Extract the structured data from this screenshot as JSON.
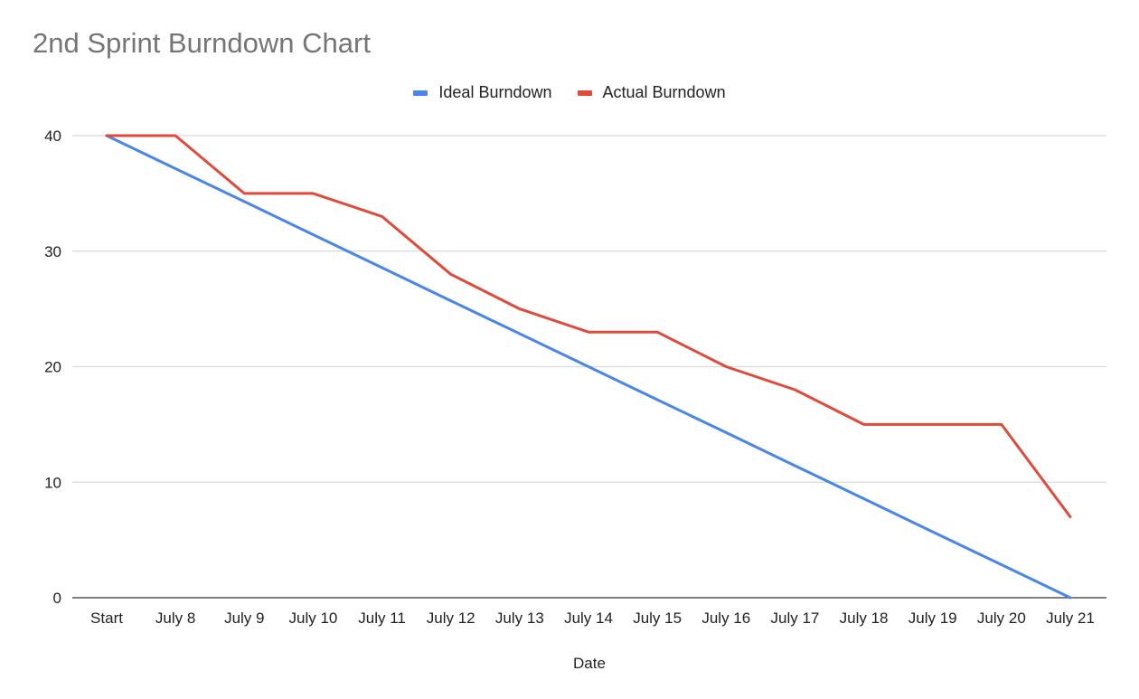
{
  "chart_data": {
    "type": "line",
    "title": "2nd Sprint Burndown Chart",
    "xlabel": "Date",
    "ylabel": "",
    "ylim": [
      0,
      40
    ],
    "yticks": [
      0,
      10,
      20,
      30,
      40
    ],
    "grid": true,
    "legend_position": "top-center",
    "categories": [
      "Start",
      "July 8",
      "July 9",
      "July 10",
      "July 11",
      "July 12",
      "July 13",
      "July 14",
      "July 15",
      "July 16",
      "July 17",
      "July 18",
      "July 19",
      "July 20",
      "July 21"
    ],
    "series": [
      {
        "name": "Ideal Burndown",
        "color": "#4a86e8",
        "values": [
          40,
          37.14,
          34.29,
          31.43,
          28.57,
          25.71,
          22.86,
          20,
          17.14,
          14.29,
          11.43,
          8.57,
          5.71,
          2.86,
          0
        ]
      },
      {
        "name": "Actual Burndown",
        "color": "#e04a3b",
        "values": [
          40,
          40,
          35,
          35,
          33,
          28,
          25,
          23,
          23,
          20,
          18,
          15,
          15,
          15,
          7
        ]
      }
    ]
  }
}
